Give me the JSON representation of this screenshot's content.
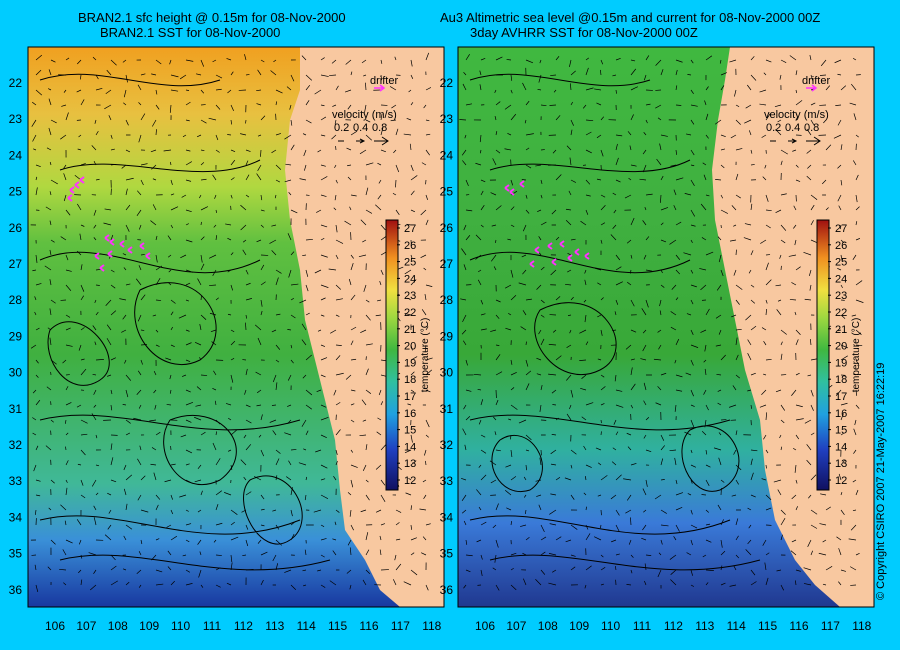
{
  "left_panel": {
    "title_line1": "BRAN2.1 sfc height @ 0.15m for 08-Nov-2000",
    "title_line2": "BRAN2.1 SST for 08-Nov-2000"
  },
  "right_panel": {
    "title_line1": "Au3 Altimetric sea level  @0.15m and current for 08-Nov-2000 00Z",
    "title_line2": "3day AVHRR SST for 08-Nov-2000 00Z"
  },
  "legend": {
    "drifter_label": "drifter",
    "velocity_label": "velocity (m/s)",
    "velocity_values": [
      "0.2",
      "0.4",
      "0.8"
    ]
  },
  "colorbar": {
    "label": "temperature (°C)",
    "ticks": [
      "12",
      "13",
      "14",
      "15",
      "16",
      "17",
      "18",
      "19",
      "20",
      "21",
      "22",
      "23",
      "24",
      "25",
      "26",
      "27"
    ]
  },
  "lat_labels": [
    "22",
    "23",
    "24",
    "25",
    "26",
    "27",
    "28",
    "29",
    "30",
    "31",
    "32",
    "33",
    "34",
    "35",
    "36"
  ],
  "lon_labels": [
    "106",
    "107",
    "108",
    "109",
    "110",
    "111",
    "112",
    "113",
    "114",
    "115",
    "116",
    "117",
    "118"
  ],
  "credit": "© Copyright CSIRO 2007   21-May-2007 16:22:19",
  "colors": {
    "background": "#00ccff",
    "land": "#f8c8a0",
    "drifter": "#ff33ff"
  }
}
